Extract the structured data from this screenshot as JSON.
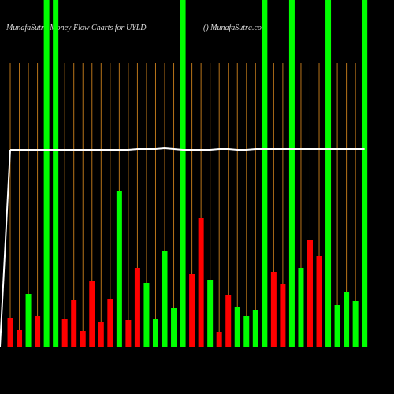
{
  "chart_data": {
    "type": "bar",
    "title": "MunafaSutra Money Flow Charts for UYLD",
    "subtitle": "() MunafaSutra.com",
    "ylim": [
      0,
      440
    ],
    "values": [
      37,
      21,
      67,
      39,
      440,
      440,
      35,
      59,
      20,
      83,
      32,
      60,
      197,
      34,
      100,
      81,
      35,
      122,
      49,
      440,
      92,
      163,
      85,
      19,
      66,
      50,
      39,
      47,
      440,
      95,
      79,
      440,
      100,
      136,
      115,
      440,
      53,
      69,
      58,
      440
    ],
    "bar_colors": [
      "red",
      "red",
      "green",
      "red",
      "green",
      "green",
      "red",
      "red",
      "red",
      "red",
      "red",
      "red",
      "green",
      "red",
      "red",
      "green",
      "green",
      "green",
      "green",
      "green",
      "red",
      "red",
      "green",
      "red",
      "red",
      "green",
      "green",
      "green",
      "green",
      "red",
      "red",
      "green",
      "green",
      "red",
      "red",
      "green",
      "green",
      "green",
      "green",
      "green"
    ],
    "line": {
      "color": "#ffffff",
      "values": [
        250,
        250,
        250,
        250,
        250,
        250,
        250,
        250,
        250,
        250,
        250,
        250,
        250,
        250,
        251,
        251,
        251,
        252,
        251,
        250,
        250,
        250,
        250,
        251,
        251,
        250,
        250,
        251,
        251,
        251,
        251,
        251,
        251,
        251,
        251,
        251,
        251,
        251,
        251,
        251
      ]
    },
    "guide_color": "#b8741a"
  }
}
